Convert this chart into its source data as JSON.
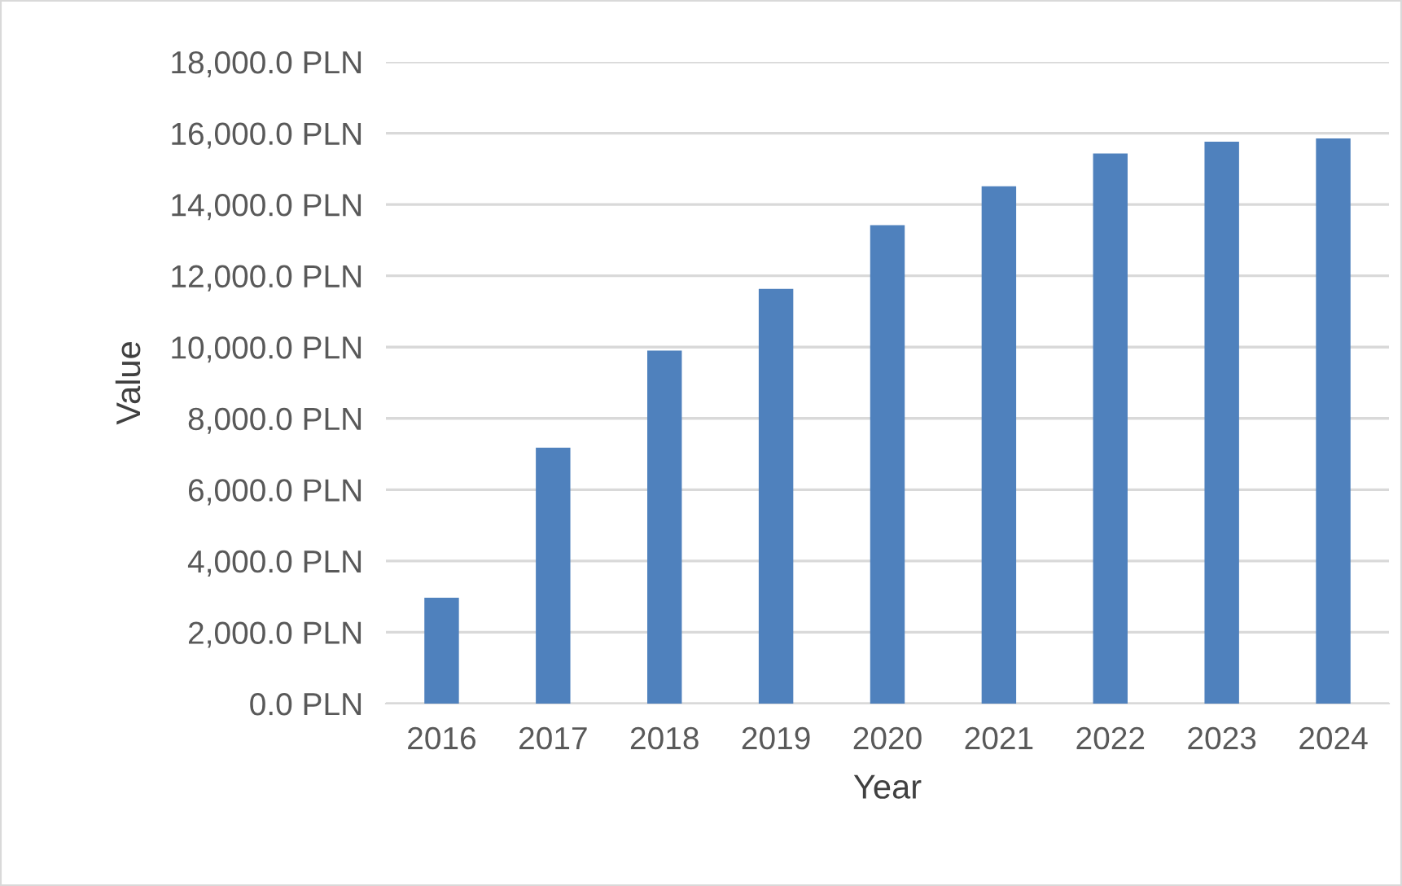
{
  "chart_data": {
    "type": "bar",
    "xlabel": "Year",
    "ylabel": "Value",
    "categories": [
      "2016",
      "2017",
      "2018",
      "2019",
      "2020",
      "2021",
      "2022",
      "2023",
      "2024"
    ],
    "values": [
      2970,
      7180,
      9900,
      11630,
      13420,
      14510,
      15430,
      15760,
      15850
    ],
    "color": "#4f81bd",
    "ylim": [
      0,
      18000
    ],
    "yticks": [
      {
        "value": 0,
        "label": "0.0 PLN"
      },
      {
        "value": 2000,
        "label": "2,000.0 PLN"
      },
      {
        "value": 4000,
        "label": "4,000.0 PLN"
      },
      {
        "value": 6000,
        "label": "6,000.0 PLN"
      },
      {
        "value": 8000,
        "label": "8,000.0 PLN"
      },
      {
        "value": 10000,
        "label": "10,000.0 PLN"
      },
      {
        "value": 12000,
        "label": "12,000.0 PLN"
      },
      {
        "value": 14000,
        "label": "14,000.0 PLN"
      },
      {
        "value": 16000,
        "label": "16,000.0 PLN"
      },
      {
        "value": 18000,
        "label": "18,000.0 PLN"
      }
    ],
    "grid": "y",
    "legend": false
  }
}
